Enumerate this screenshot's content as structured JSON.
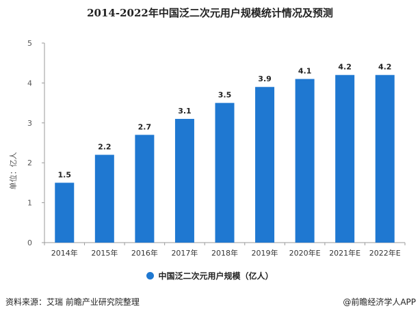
{
  "chart_data": {
    "type": "bar",
    "title": "2014-2022年中国泛二次元用户规模统计情况及预测",
    "ylabel": "单位：亿人",
    "categories": [
      "2014年",
      "2015年",
      "2016年",
      "2017年",
      "2018年",
      "2019年",
      "2020年E",
      "2021年E",
      "2022年E"
    ],
    "series": [
      {
        "name": "中国泛二次元用户规模（亿人）",
        "values": [
          1.5,
          2.2,
          2.7,
          3.1,
          3.5,
          3.9,
          4.1,
          4.2,
          4.2
        ]
      }
    ],
    "data_labels": [
      "1.5",
      "2.2",
      "2.7",
      "3.1",
      "3.5",
      "3.9",
      "4.1",
      "4.2",
      "4.2"
    ],
    "ylim": [
      0,
      5
    ],
    "yticks": [
      0,
      1,
      2,
      3,
      4,
      5
    ],
    "grid": false,
    "legend_position": "bottom",
    "bar_color": "#1f78d1"
  },
  "footer": {
    "source": "资料来源：艾瑞 前瞻产业研究院整理",
    "brand": "@前瞻经济学人APP"
  }
}
